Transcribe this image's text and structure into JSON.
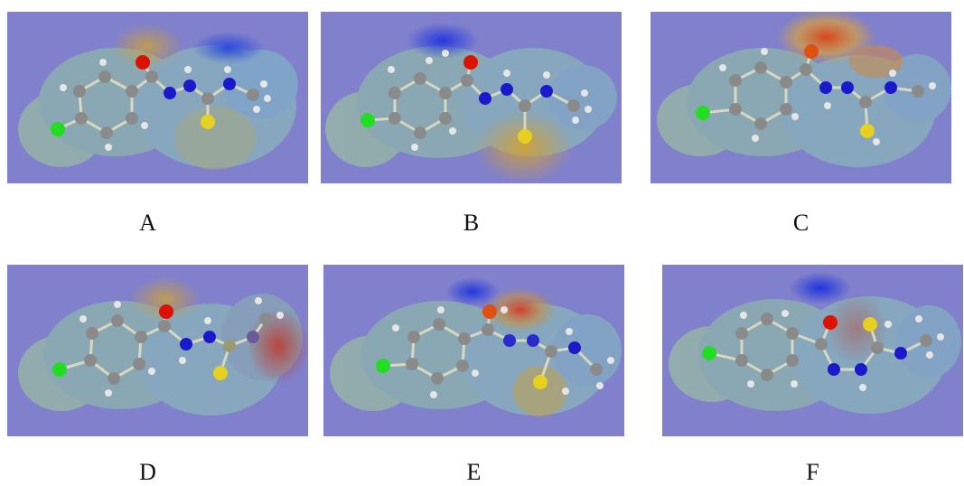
{
  "colors": {
    "background": "#8080cc",
    "carbon": "#8a8a8a",
    "hydrogen": "#e6e6e6",
    "nitrogen": "#1a1acc",
    "oxygen": "#dd1100",
    "sulfur": "#e6d020",
    "chlorine": "#22dd22",
    "surface": "#88b8b4"
  },
  "panels": [
    {
      "label": "A",
      "variant": "A",
      "bond_color": "#d8d8c0"
    },
    {
      "label": "B",
      "variant": "B",
      "bond_color": "#d8d8c0"
    },
    {
      "label": "C",
      "variant": "C",
      "bond_color": "#d8d8c0"
    },
    {
      "label": "D",
      "variant": "D",
      "bond_color": "#d8d8c0"
    },
    {
      "label": "E",
      "variant": "E",
      "bond_color": "#d8d8c0"
    },
    {
      "label": "F",
      "variant": "F",
      "bond_color": "#d8d8c0"
    }
  ]
}
